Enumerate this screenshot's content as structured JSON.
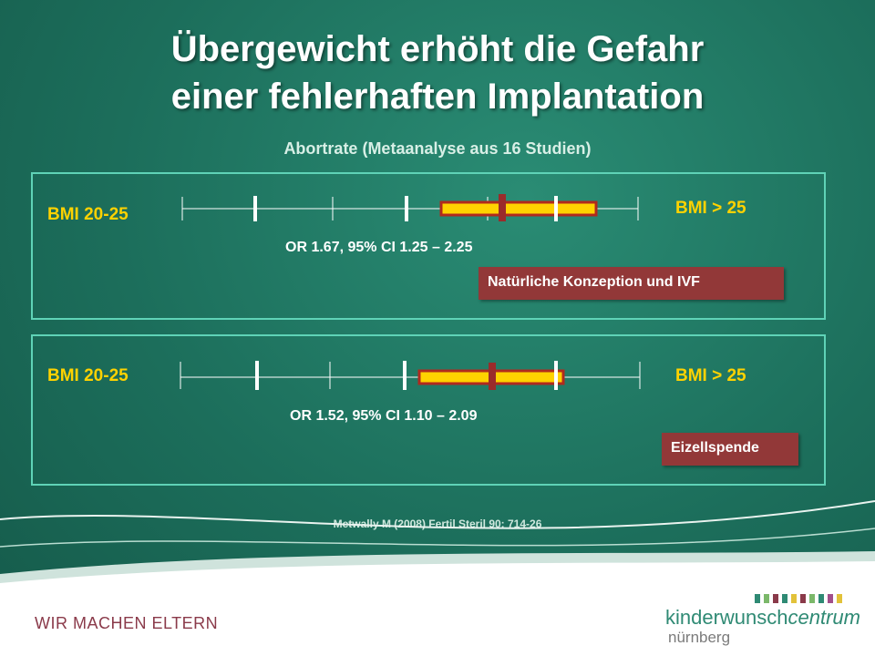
{
  "slide": {
    "title_line1": "Übergewicht erhöht die Gefahr",
    "title_line2": "einer fehlerhaften Implantation",
    "subtitle": "Abortrate  (Metaanalyse aus 16 Studien)",
    "source": "Metwally M (2008) Fertil Steril 90: 714-26"
  },
  "panels": [
    {
      "left_label": "BMI 20-25",
      "right_label": "BMI > 25",
      "or_text": "OR 1.67, 95% CI 1.25 – 2.25",
      "tag": "Natürliche Konzeption und IVF",
      "or": 1.67,
      "ci_low": 1.25,
      "ci_high": 2.25
    },
    {
      "left_label": "BMI 20-25",
      "right_label": "BMI > 25",
      "or_text": "OR 1.52, 95% CI 1.10 – 2.09",
      "tag": "Eizellspende",
      "or": 1.52,
      "ci_low": 1.1,
      "ci_high": 2.09
    }
  ],
  "footer": {
    "slogan": "WIR MACHEN ELTERN",
    "logo_main": "kinderwunsch",
    "logo_italic": "centrum",
    "logo_sub": "nürnberg"
  },
  "colors": {
    "background": "#1c6e5b",
    "panel_border": "#5fd3b7",
    "bmi_label": "#ffd200",
    "ci_bar_fill": "#ffd200",
    "ci_bar_border": "#b02a1e",
    "or_marker": "#9a2b2b",
    "tag_bg": "#923838",
    "slogan": "#8a3a4a",
    "logo": "#2f8a74"
  }
}
